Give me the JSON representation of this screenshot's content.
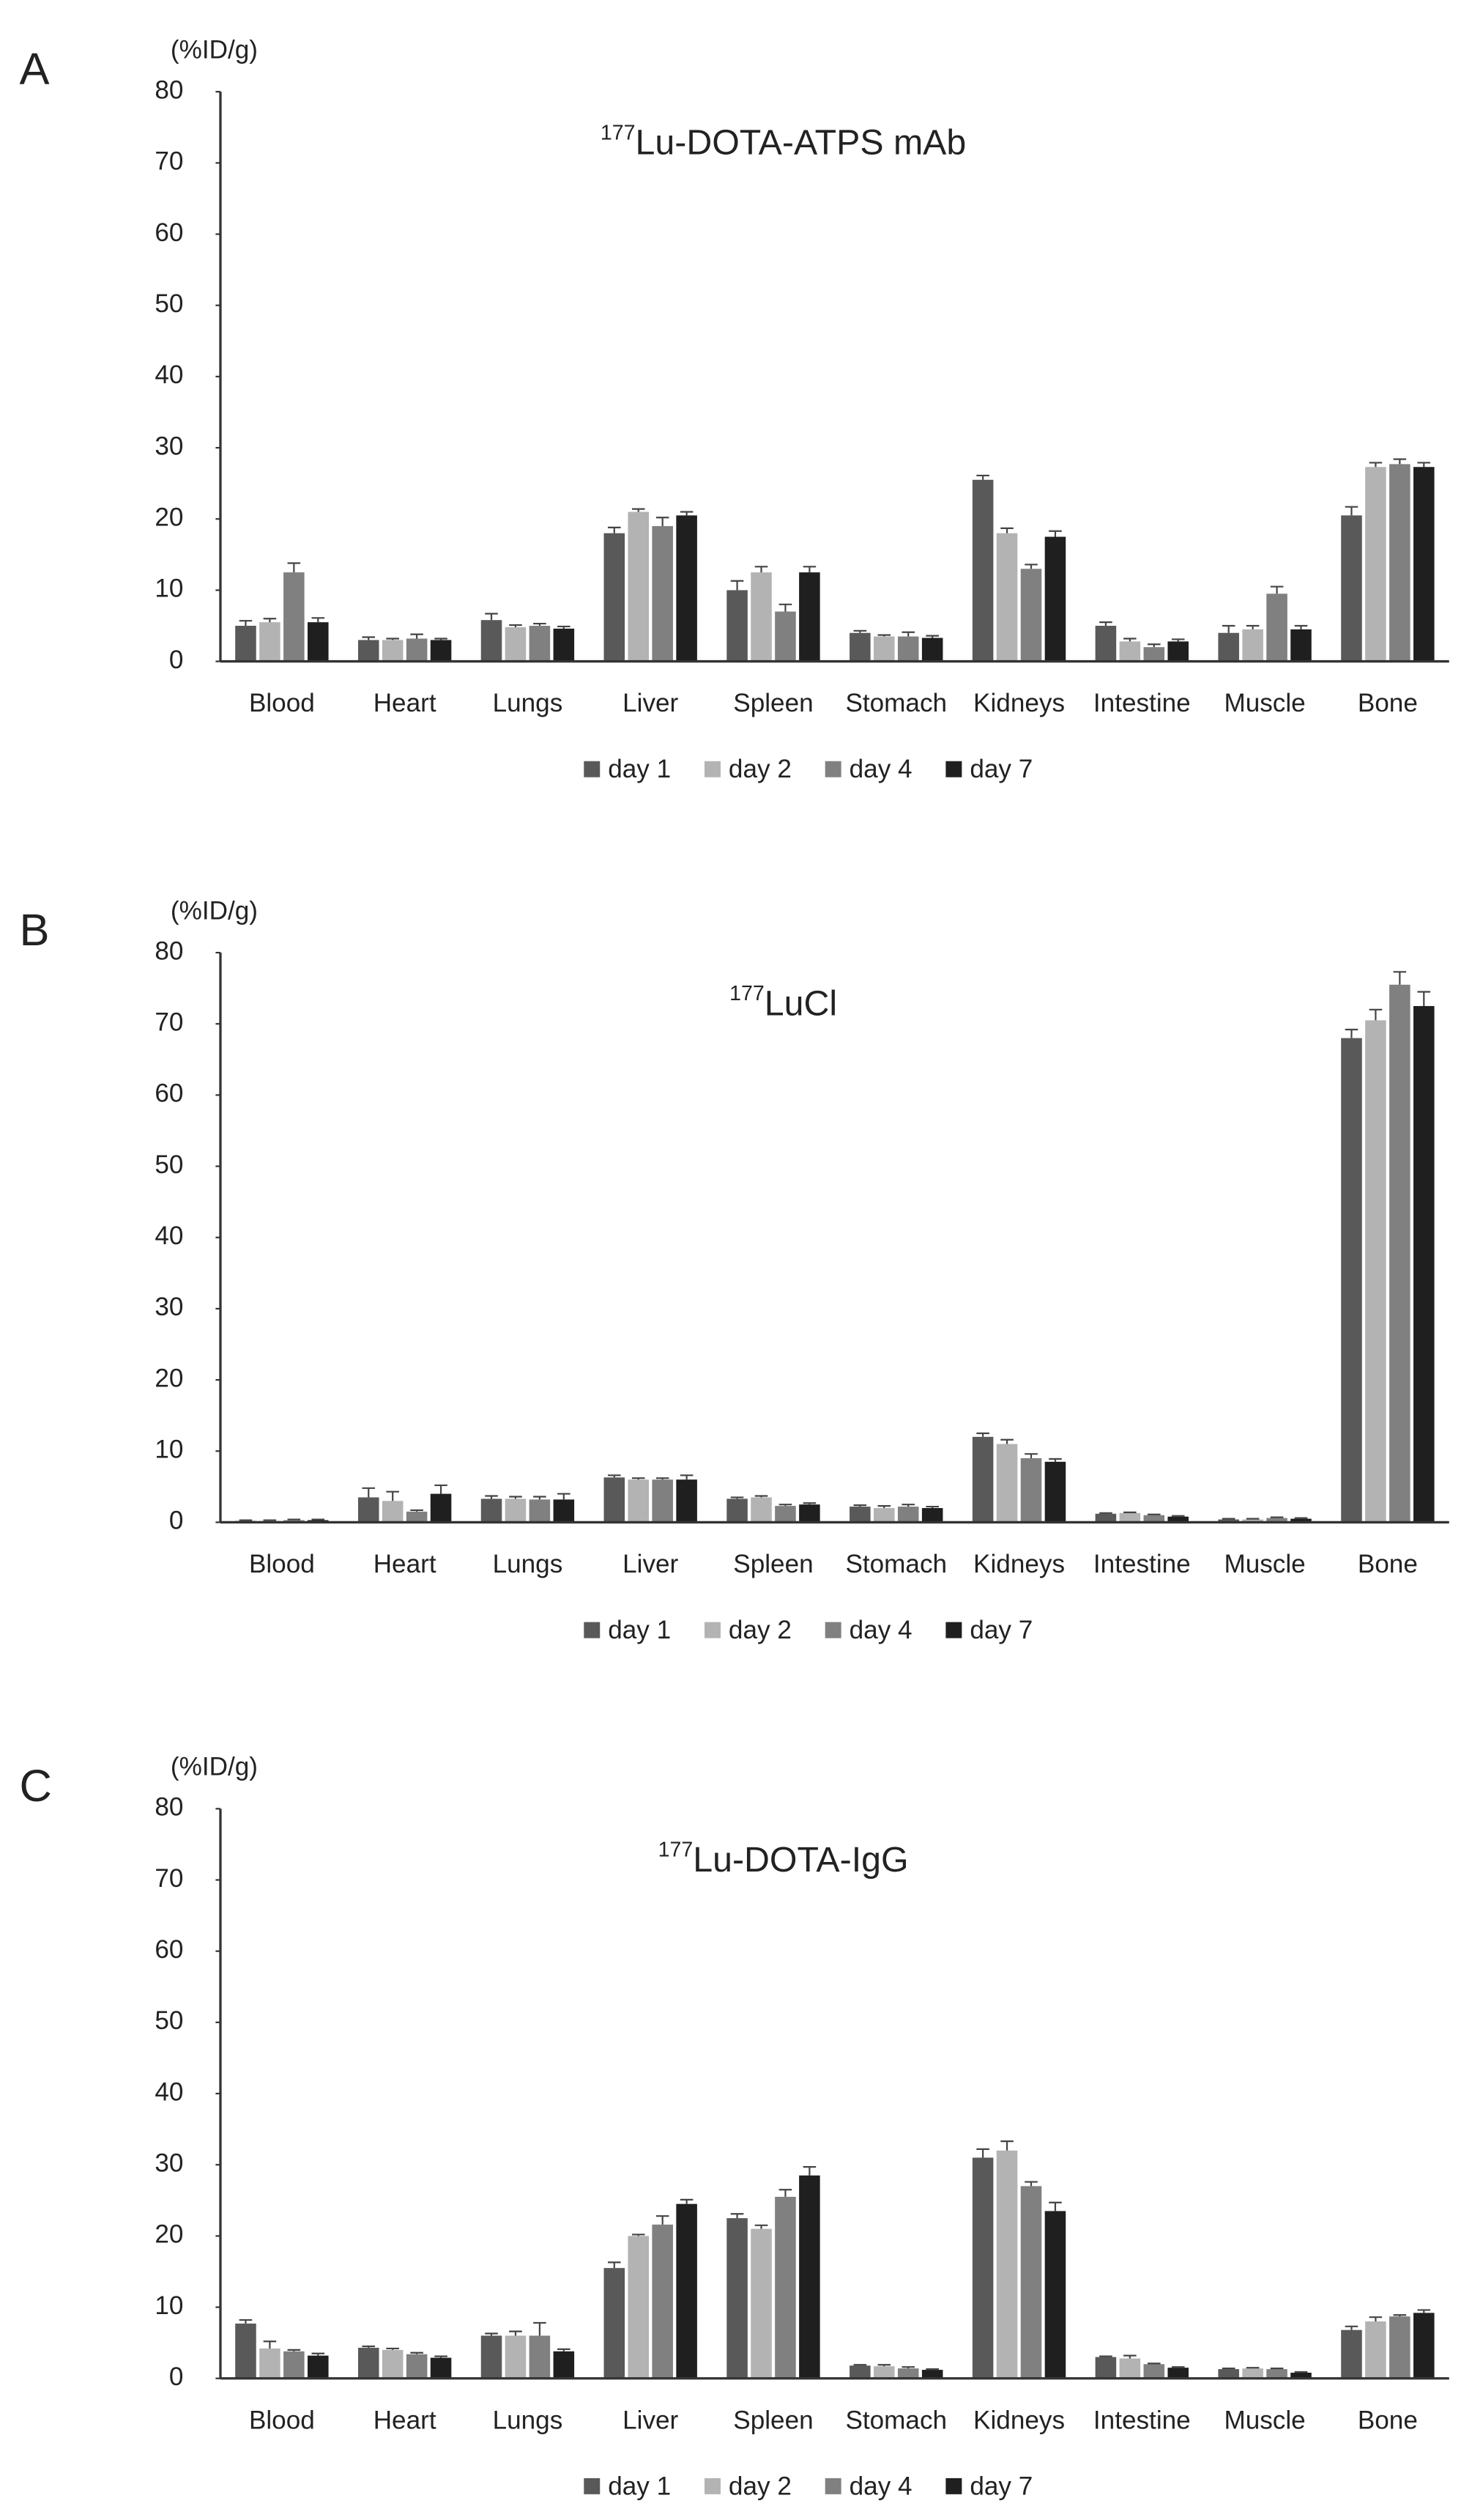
{
  "chart_data": [
    {
      "type": "bar",
      "panel": "A",
      "ylabel": "(%ID/g)",
      "title_superscript": "177",
      "title": "Lu-DOTA-ATPS mAb",
      "categories": [
        "Blood",
        "Heart",
        "Lungs",
        "Liver",
        "Spleen",
        "Stomach",
        "Kidneys",
        "Intestine",
        "Muscle",
        "Bone"
      ],
      "series": [
        {
          "name": "day 1",
          "color": "#595959",
          "values": [
            5,
            3,
            5.8,
            18,
            10,
            4,
            25.5,
            5,
            4,
            20.5
          ],
          "errors": [
            0.7,
            0.4,
            0.9,
            0.8,
            1.3,
            0.3,
            0.6,
            0.5,
            1,
            1.2
          ]
        },
        {
          "name": "day 2",
          "color": "#b3b3b3",
          "values": [
            5.5,
            3,
            4.8,
            21,
            12.5,
            3.5,
            18,
            2.8,
            4.5,
            27.3
          ],
          "errors": [
            0.5,
            0.2,
            0.3,
            0.4,
            0.8,
            0.2,
            0.7,
            0.4,
            0.5,
            0.6
          ]
        },
        {
          "name": "day 4",
          "color": "#808080",
          "values": [
            12.5,
            3.2,
            5,
            19,
            7,
            3.5,
            13,
            2,
            9.5,
            27.7
          ],
          "errors": [
            1.3,
            0.6,
            0.3,
            1.2,
            1,
            0.6,
            0.6,
            0.4,
            1,
            0.7
          ]
        },
        {
          "name": "day 7",
          "color": "#1f1f1f",
          "values": [
            5.5,
            3,
            4.6,
            20.5,
            12.5,
            3.3,
            17.5,
            2.8,
            4.5,
            27.3
          ],
          "errors": [
            0.6,
            0.2,
            0.3,
            0.5,
            0.8,
            0.3,
            0.8,
            0.3,
            0.5,
            0.6
          ]
        }
      ],
      "ylim": [
        0,
        80
      ],
      "yticks": [
        0,
        10,
        20,
        30,
        40,
        50,
        60,
        70,
        80
      ]
    },
    {
      "type": "bar",
      "panel": "B",
      "ylabel": "(%ID/g)",
      "title_superscript": "177",
      "title": "LuCl",
      "categories": [
        "Blood",
        "Heart",
        "Lungs",
        "Liver",
        "Spleen",
        "Stomach",
        "Kidneys",
        "Intestine",
        "Muscle",
        "Bone"
      ],
      "series": [
        {
          "name": "day 1",
          "color": "#595959",
          "values": [
            0.2,
            3.5,
            3.3,
            6.3,
            3.3,
            2.2,
            12,
            1.2,
            0.4,
            68
          ],
          "errors": [
            0.1,
            1.3,
            0.4,
            0.3,
            0.2,
            0.2,
            0.5,
            0.1,
            0.1,
            1.2
          ]
        },
        {
          "name": "day 2",
          "color": "#b3b3b3",
          "values": [
            0.2,
            3,
            3.3,
            6,
            3.5,
            2,
            11,
            1.3,
            0.4,
            70.5
          ],
          "errors": [
            0.1,
            1.3,
            0.3,
            0.2,
            0.2,
            0.3,
            0.6,
            0.1,
            0.1,
            1.5
          ]
        },
        {
          "name": "day 4",
          "color": "#808080",
          "values": [
            0.3,
            1.5,
            3.2,
            6,
            2.3,
            2.2,
            9,
            1,
            0.6,
            75.5
          ],
          "errors": [
            0.1,
            0.2,
            0.4,
            0.2,
            0.2,
            0.3,
            0.6,
            0.1,
            0.1,
            1.8
          ]
        },
        {
          "name": "day 7",
          "color": "#1f1f1f",
          "values": [
            0.3,
            4,
            3.2,
            6,
            2.5,
            2,
            8.5,
            0.8,
            0.5,
            72.5
          ],
          "errors": [
            0.1,
            1.2,
            0.8,
            0.6,
            0.2,
            0.2,
            0.4,
            0.1,
            0.1,
            2
          ]
        }
      ],
      "ylim": [
        0,
        80
      ],
      "yticks": [
        0,
        10,
        20,
        30,
        40,
        50,
        60,
        70,
        80
      ]
    },
    {
      "type": "bar",
      "panel": "C",
      "ylabel": "(%ID/g)",
      "title_superscript": "177",
      "title": "Lu-DOTA-IgG",
      "categories": [
        "Blood",
        "Heart",
        "Lungs",
        "Liver",
        "Spleen",
        "Stomach",
        "Kidneys",
        "Intestine",
        "Muscle",
        "Bone"
      ],
      "series": [
        {
          "name": "day 1",
          "color": "#595959",
          "values": [
            7.7,
            4.3,
            6,
            15.5,
            22.5,
            1.8,
            31,
            3,
            1.3,
            6.8
          ],
          "errors": [
            0.5,
            0.2,
            0.3,
            0.8,
            0.6,
            0.1,
            1.2,
            0.1,
            0.1,
            0.5
          ]
        },
        {
          "name": "day 2",
          "color": "#b3b3b3",
          "values": [
            4.2,
            4,
            6,
            20,
            21,
            1.7,
            32,
            2.8,
            1.4,
            8
          ],
          "errors": [
            1,
            0.2,
            0.6,
            0.2,
            0.5,
            0.2,
            1.3,
            0.4,
            0.1,
            0.6
          ]
        },
        {
          "name": "day 4",
          "color": "#808080",
          "values": [
            3.8,
            3.4,
            6,
            21.6,
            25.5,
            1.4,
            27,
            2,
            1.3,
            8.7
          ],
          "errors": [
            0.2,
            0.2,
            1.8,
            1.2,
            1,
            0.2,
            0.6,
            0.1,
            0.1,
            0.2
          ]
        },
        {
          "name": "day 7",
          "color": "#1f1f1f",
          "values": [
            3.2,
            2.9,
            3.8,
            24.5,
            28.5,
            1.2,
            23.5,
            1.5,
            0.8,
            9.2
          ],
          "errors": [
            0.3,
            0.2,
            0.3,
            0.6,
            1.2,
            0.1,
            1.2,
            0.1,
            0.1,
            0.4
          ]
        }
      ],
      "ylim": [
        0,
        80
      ],
      "yticks": [
        0,
        10,
        20,
        30,
        40,
        50,
        60,
        70,
        80
      ]
    }
  ]
}
